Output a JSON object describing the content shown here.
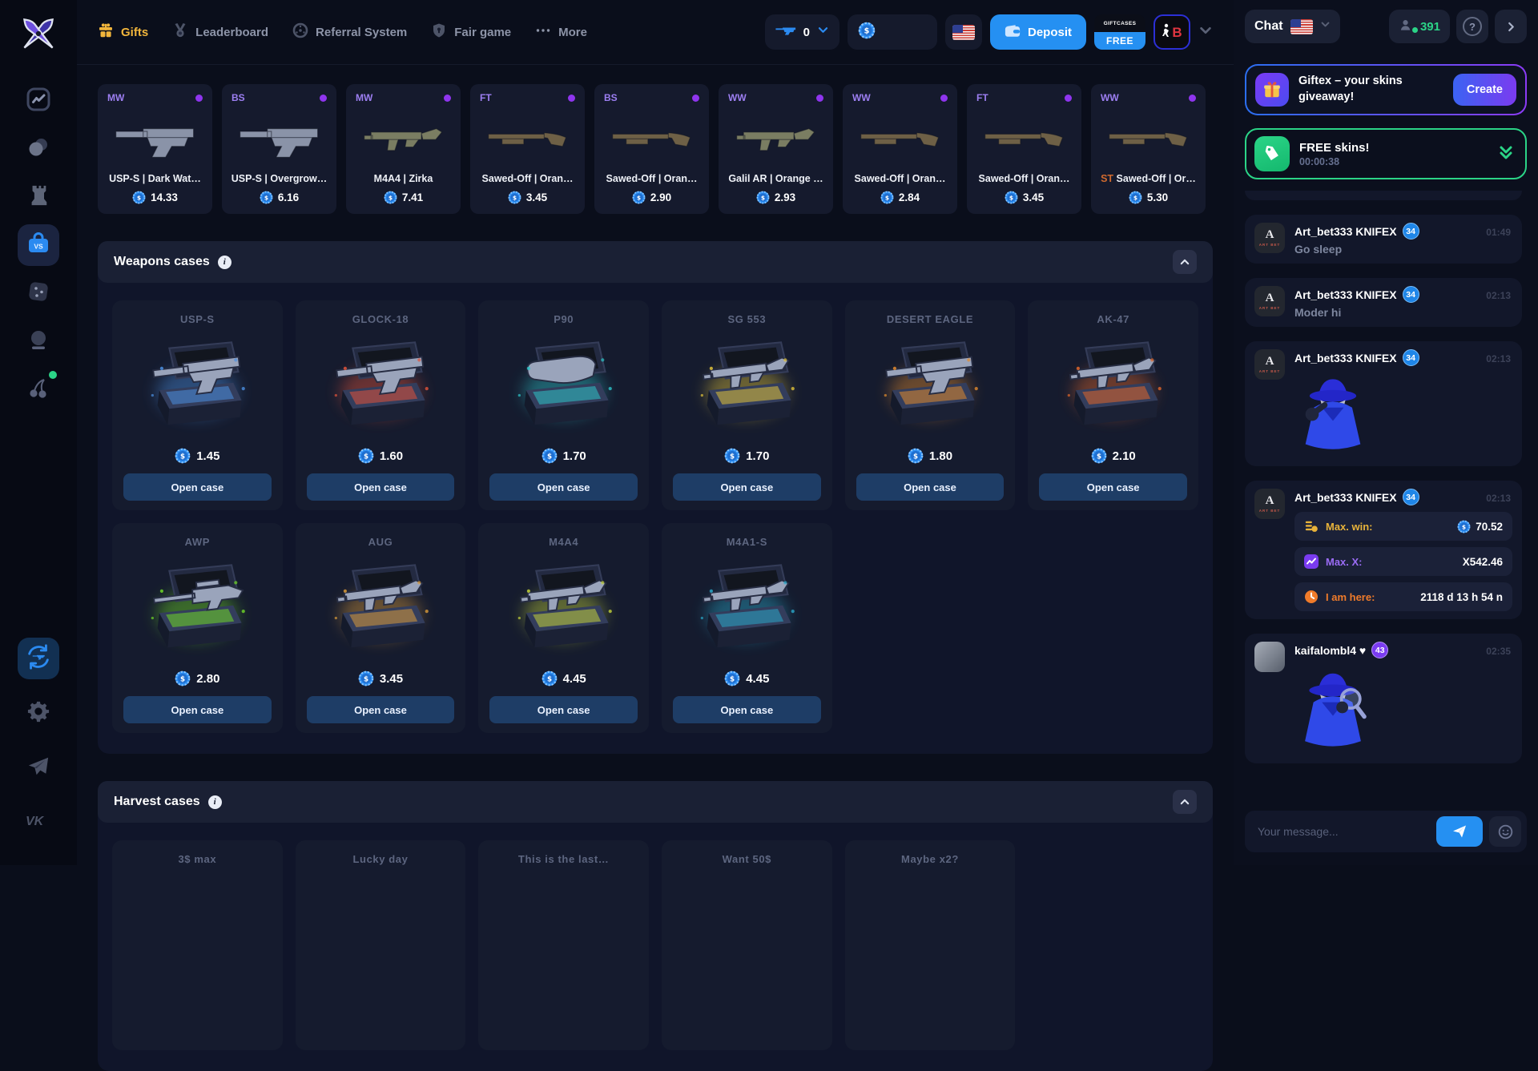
{
  "app": {
    "accent_blue": "#2590f2",
    "accent_gold": "#f2b63c",
    "accent_purple": "#9d7ff2",
    "accent_green": "#2bd487"
  },
  "sidebar": {
    "logo": "crossed-knives-logo",
    "items": [
      {
        "icon": "crash-chart-icon",
        "active": false,
        "notify": false
      },
      {
        "icon": "coins-icon",
        "active": false,
        "notify": false
      },
      {
        "icon": "tower-rook-icon",
        "active": false,
        "notify": false
      },
      {
        "icon": "case-battle-icon",
        "active": true,
        "notify": false
      },
      {
        "icon": "dice-icon",
        "active": false,
        "notify": false
      },
      {
        "icon": "crystal-ball-icon",
        "active": false,
        "notify": false
      },
      {
        "icon": "cherries-icon",
        "active": false,
        "notify": true
      }
    ],
    "bottom": [
      {
        "icon": "gun-trade-icon",
        "active": true
      },
      {
        "icon": "gear-icon",
        "active": false
      },
      {
        "icon": "telegram-icon",
        "active": false
      },
      {
        "icon": "vk-icon",
        "active": false
      }
    ]
  },
  "topnav": {
    "items": [
      {
        "label": "Gifts",
        "icon": "gift-icon",
        "active": true
      },
      {
        "label": "Leaderboard",
        "icon": "medal-icon",
        "active": false
      },
      {
        "label": "Referral System",
        "icon": "roulette-icon",
        "active": false
      },
      {
        "label": "Fair game",
        "icon": "shield-icon",
        "active": false
      },
      {
        "label": "More",
        "icon": "dots-icon",
        "active": false
      }
    ],
    "gun_count": "0",
    "balance": "",
    "deposit_label": "Deposit",
    "giftcases_line1": "GIFTCASES",
    "giftcases_line2": "FREE"
  },
  "live_drops": [
    {
      "wear": "MW",
      "st": "",
      "name": "USP-S | Dark Wat…",
      "price": "14.33",
      "weapon": "pistol"
    },
    {
      "wear": "BS",
      "st": "",
      "name": "USP-S | Overgrow…",
      "price": "6.16",
      "weapon": "pistol"
    },
    {
      "wear": "MW",
      "st": "",
      "name": "M4A4 | Zirka",
      "price": "7.41",
      "weapon": "rifle"
    },
    {
      "wear": "FT",
      "st": "",
      "name": "Sawed-Off | Oran…",
      "price": "3.45",
      "weapon": "shotgun"
    },
    {
      "wear": "BS",
      "st": "",
      "name": "Sawed-Off | Oran…",
      "price": "2.90",
      "weapon": "shotgun"
    },
    {
      "wear": "WW",
      "st": "",
      "name": "Galil AR | Orange …",
      "price": "2.93",
      "weapon": "rifle"
    },
    {
      "wear": "WW",
      "st": "",
      "name": "Sawed-Off | Oran…",
      "price": "2.84",
      "weapon": "shotgun"
    },
    {
      "wear": "FT",
      "st": "",
      "name": "Sawed-Off | Oran…",
      "price": "3.45",
      "weapon": "shotgun"
    },
    {
      "wear": "WW",
      "st": "ST",
      "name": "Sawed-Off | Or…",
      "price": "5.30",
      "weapon": "shotgun"
    }
  ],
  "weapons_section": {
    "title": "Weapons cases",
    "open_case_label": "Open case",
    "cases": [
      {
        "title": "USP-S",
        "price": "1.45",
        "glow": "#4b8fe0",
        "weapon": "pistol"
      },
      {
        "title": "GLOCK-18",
        "price": "1.60",
        "glow": "#e0523a",
        "weapon": "pistol"
      },
      {
        "title": "P90",
        "price": "1.70",
        "glow": "#2ec4c9",
        "weapon": "smg"
      },
      {
        "title": "SG 553",
        "price": "1.70",
        "glow": "#e0c23a",
        "weapon": "rifle"
      },
      {
        "title": "DESERT EAGLE",
        "price": "1.80",
        "glow": "#e08a2e",
        "weapon": "pistol"
      },
      {
        "title": "AK-47",
        "price": "2.10",
        "glow": "#e0662a",
        "weapon": "rifle"
      },
      {
        "title": "AWP",
        "price": "2.80",
        "glow": "#6fd827",
        "weapon": "sniper"
      },
      {
        "title": "AUG",
        "price": "3.45",
        "glow": "#d89a3a",
        "weapon": "rifle"
      },
      {
        "title": "M4A4",
        "price": "4.45",
        "glow": "#c2d23a",
        "weapon": "rifle"
      },
      {
        "title": "M4A1-S",
        "price": "4.45",
        "glow": "#2aa8c9",
        "weapon": "rifle"
      }
    ]
  },
  "harvest_section": {
    "title": "Harvest cases",
    "cases": [
      {
        "title": "3$ max"
      },
      {
        "title": "Lucky day"
      },
      {
        "title": "This is the last…"
      },
      {
        "title": "Want 50$"
      },
      {
        "title": "Maybe x2?"
      }
    ]
  },
  "chat": {
    "label": "Chat",
    "online": "391",
    "giveaway": {
      "title": "Giftex – your skins giveaway!",
      "button": "Create"
    },
    "freeskins": {
      "title": "FREE skins!",
      "timer": "00:00:38"
    },
    "messages": [
      {
        "user": "Art_bet333 KNIFEX",
        "level": "34",
        "level_color": "blue",
        "time": "01:49",
        "text": "Go sleep",
        "avatar": "artbet"
      },
      {
        "user": "Art_bet333 KNIFEX",
        "level": "34",
        "level_color": "blue",
        "time": "02:13",
        "text": "Moder hi",
        "avatar": "artbet"
      },
      {
        "user": "Art_bet333 KNIFEX",
        "level": "34",
        "level_color": "blue",
        "time": "02:13",
        "sticker": "spy",
        "avatar": "artbet"
      },
      {
        "user": "Art_bet333 KNIFEX",
        "level": "34",
        "level_color": "blue",
        "time": "02:13",
        "avatar": "artbet",
        "stats": [
          {
            "label": "Max. win:",
            "color": "gold",
            "icon": "coins-stack-icon",
            "value": "70.52",
            "coin": true
          },
          {
            "label": "Max. X:",
            "color": "purple",
            "icon": "chart-icon",
            "value": "X542.46",
            "coin": false
          },
          {
            "label": "I am here:",
            "color": "orange",
            "icon": "clock-icon",
            "value": "2118 d 13 h 54 n",
            "coin": false
          }
        ]
      },
      {
        "user": "kaifalombl4 ♥",
        "level": "43",
        "level_color": "purple",
        "time": "02:35",
        "sticker": "spy-magnifier",
        "avatar": "kaifa"
      }
    ],
    "input_placeholder": "Your message..."
  }
}
